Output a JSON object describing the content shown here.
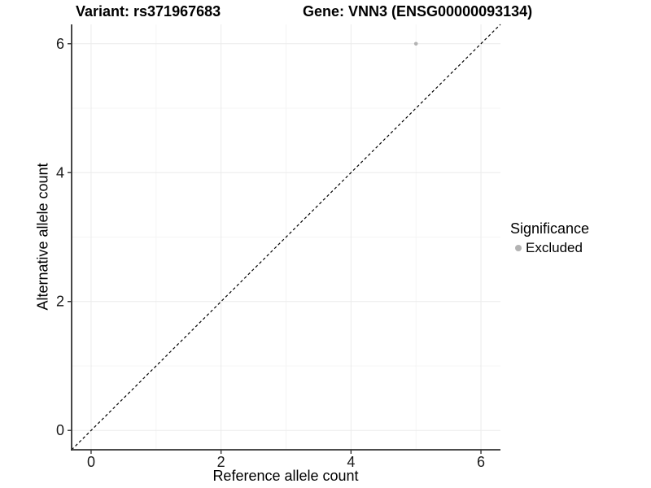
{
  "colors": {
    "background": "#ffffff",
    "grid_major": "#ebebeb",
    "grid_minor": "#f4f4f4",
    "axis": "#333333",
    "tick_text": "#1a1a1a",
    "title_text": "#000000",
    "identity_line": "#000000",
    "point": "#b3b3b3"
  },
  "chart_data": {
    "type": "scatter",
    "title_left": "Variant: rs371967683",
    "title_right": "Gene: VNN3 (ENSG00000093134)",
    "xlabel": "Reference allele count",
    "ylabel": "Alternative allele count",
    "xlim": [
      -0.3,
      6.3
    ],
    "ylim": [
      -0.3,
      6.3
    ],
    "xticks": [
      0,
      2,
      4,
      6
    ],
    "yticks": [
      0,
      2,
      4,
      6
    ],
    "minor_breaks": [
      1,
      3,
      5
    ],
    "grid": true,
    "identity_line": {
      "style": "dashed",
      "from": [
        -0.3,
        -0.3
      ],
      "to": [
        6.3,
        6.3
      ]
    },
    "series": [
      {
        "name": "Excluded",
        "color": "#b3b3b3",
        "points": [
          {
            "x": 5,
            "y": 6
          }
        ]
      }
    ],
    "legend": {
      "title": "Significance",
      "position": "right",
      "items": [
        {
          "label": "Excluded",
          "color": "#b3b3b3"
        }
      ]
    }
  }
}
